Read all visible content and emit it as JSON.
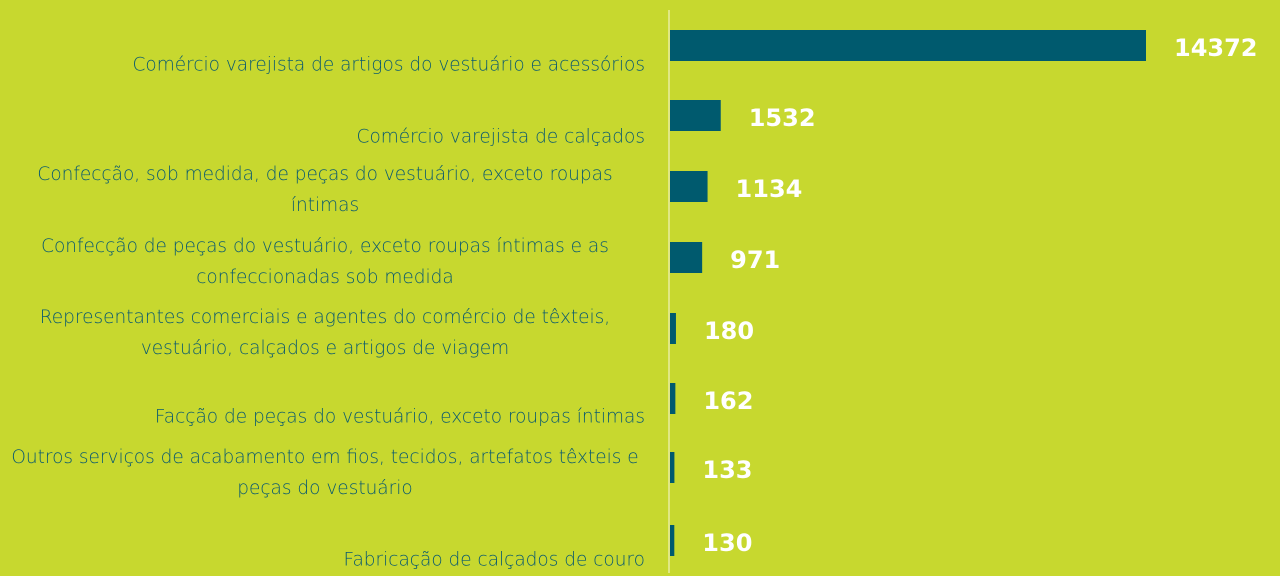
{
  "chart_data": {
    "type": "bar",
    "orientation": "horizontal",
    "categories": [
      "Comércio varejista de artigos do vestuário e acessórios",
      "Comércio varejista de calçados",
      "Confecção, sob medida, de peças do vestuário, exceto roupas íntimas",
      "Confecção de peças do vestuário, exceto roupas íntimas e as confeccionadas sob medida",
      "Representantes comerciais e agentes do comércio de têxteis, vestuário, calçados e artigos de viagem",
      "Facção de peças do vestuário, exceto roupas íntimas",
      "Outros serviços de acabamento em fios, tecidos, artefatos têxteis e peças do vestuário",
      "Fabricação de calçados de couro"
    ],
    "values": [
      14372,
      1532,
      1134,
      971,
      180,
      162,
      133,
      130
    ],
    "color": "#005a6e"
  }
}
